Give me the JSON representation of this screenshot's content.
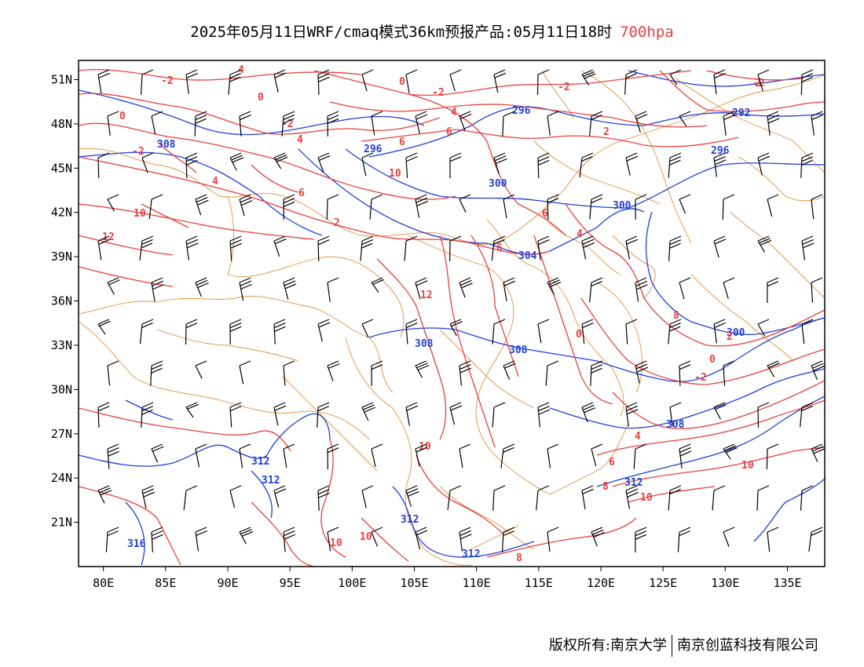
{
  "title": {
    "main": "2025年05月11日WRF/cmaq模式36km预报产品:05月11日18时",
    "level": "700hpa"
  },
  "colors": {
    "temperature": "#e8403f",
    "height": "#2040d8",
    "border": "#e09040",
    "wind": "#000000"
  },
  "axes": {
    "x_labels": [
      "80E",
      "85E",
      "90E",
      "95E",
      "100E",
      "105E",
      "110E",
      "115E",
      "120E",
      "125E",
      "130E",
      "135E"
    ],
    "y_labels": [
      "51N",
      "48N",
      "45N",
      "42N",
      "39N",
      "36N",
      "33N",
      "30N",
      "27N",
      "24N",
      "21N"
    ],
    "x_values": [
      80,
      85,
      90,
      95,
      100,
      105,
      110,
      115,
      120,
      125,
      130,
      135
    ],
    "y_values": [
      51,
      48,
      45,
      42,
      39,
      36,
      33,
      30,
      27,
      24,
      21
    ]
  },
  "height_labels": [
    "308",
    "296",
    "296",
    "292",
    "296",
    "300",
    "300",
    "304",
    "300",
    "308",
    "308",
    "308",
    "312",
    "312",
    "312",
    "316",
    "312",
    "312"
  ],
  "temp_labels": [
    "-2",
    "4",
    "0",
    "-2",
    "0",
    "-2",
    "4",
    "0",
    "-2",
    "-2",
    "-2",
    "6",
    "6",
    "2",
    "4",
    "6",
    "2",
    "10",
    "4",
    "6",
    "10",
    "12",
    "6",
    "4",
    "8",
    "12",
    "0",
    "2",
    "0",
    "-2",
    "2",
    "4",
    "6",
    "8",
    "10",
    "10",
    "10",
    "10",
    "10",
    "8"
  ],
  "copyright": {
    "left": "版权所有:南京大学",
    "right": "南京创蓝科技有限公司"
  }
}
